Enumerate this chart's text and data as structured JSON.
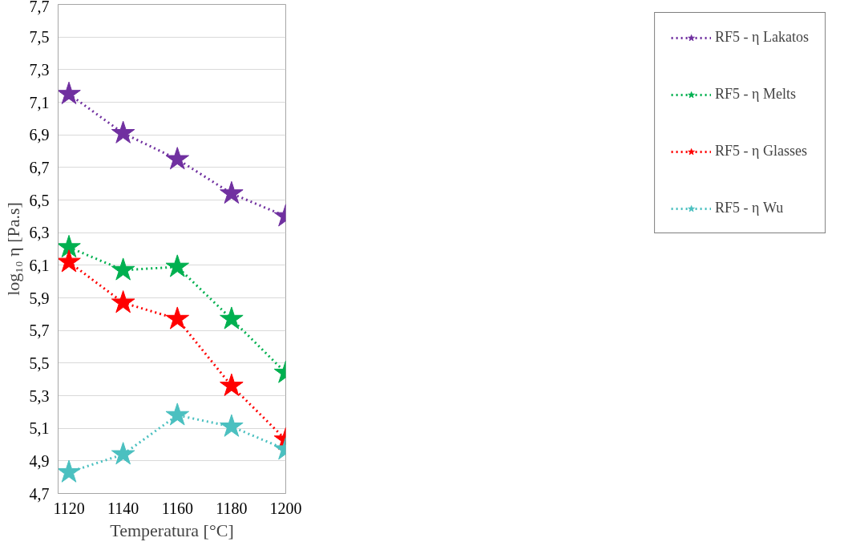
{
  "chart_data": {
    "type": "line",
    "xlabel": "Temperatura [°C]",
    "ylabel": "log₁₀ η [Pa.s]",
    "x": [
      1120,
      1140,
      1160,
      1180,
      1200
    ],
    "xlim": [
      1116,
      1200
    ],
    "xticks": [
      1120,
      1140,
      1160,
      1180,
      1200
    ],
    "ylim": [
      4.7,
      7.7
    ],
    "yticks": [
      {
        "value": 4.7,
        "label": "4,7"
      },
      {
        "value": 4.9,
        "label": "4,9"
      },
      {
        "value": 5.1,
        "label": "5,1"
      },
      {
        "value": 5.3,
        "label": "5,3"
      },
      {
        "value": 5.5,
        "label": "5,5"
      },
      {
        "value": 5.7,
        "label": "5,7"
      },
      {
        "value": 5.9,
        "label": "5,9"
      },
      {
        "value": 6.1,
        "label": "6,1"
      },
      {
        "value": 6.3,
        "label": "6,3"
      },
      {
        "value": 6.5,
        "label": "6,5"
      },
      {
        "value": 6.7,
        "label": "6,7"
      },
      {
        "value": 6.9,
        "label": "6,9"
      },
      {
        "value": 7.1,
        "label": "7,1"
      },
      {
        "value": 7.3,
        "label": "7,3"
      },
      {
        "value": 7.5,
        "label": "7,5"
      },
      {
        "value": 7.7,
        "label": "7,7"
      }
    ],
    "grid": "y",
    "legend": "right",
    "marker": "star",
    "line_style": "dotted",
    "series": [
      {
        "name": "RF5 - η Lakatos",
        "color": "#7030a0",
        "values": [
          7.15,
          6.91,
          6.75,
          6.54,
          6.4
        ]
      },
      {
        "name": "RF5 - η Melts",
        "color": "#00b050",
        "values": [
          6.21,
          6.07,
          6.09,
          5.77,
          5.44
        ]
      },
      {
        "name": "RF5 - η Glasses",
        "color": "#ff0000",
        "values": [
          6.12,
          5.87,
          5.77,
          5.36,
          5.03
        ]
      },
      {
        "name": "RF5 - η Wu",
        "color": "#4bc0c0",
        "values": [
          4.83,
          4.94,
          5.18,
          5.11,
          4.97
        ]
      }
    ]
  }
}
